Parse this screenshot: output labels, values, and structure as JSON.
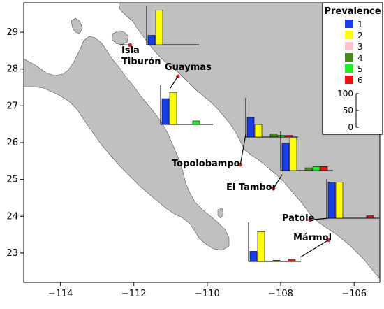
{
  "map": {
    "x_ticks": [
      "−114",
      "−112",
      "−110",
      "−108",
      "−106"
    ],
    "y_ticks": [
      "29",
      "28",
      "27",
      "26",
      "25",
      "24",
      "23"
    ],
    "lon_range": [
      -115,
      -105.3
    ],
    "lat_range": [
      22.2,
      29.8
    ]
  },
  "legend": {
    "title": "Prevalence",
    "categories": [
      {
        "label": "1",
        "color": "#1a3ee6"
      },
      {
        "label": "2",
        "color": "#ffff00"
      },
      {
        "label": "3",
        "color": "#ffc0cb"
      },
      {
        "label": "4",
        "color": "#4a8a1c"
      },
      {
        "label": "5",
        "color": "#22ee22"
      },
      {
        "label": "6",
        "color": "#ee1111"
      }
    ],
    "scale_labels": [
      "100",
      "50",
      "0"
    ]
  },
  "colors": {
    "land": "#c0c0c0",
    "sea": "#ffffff",
    "site_marker": "#e8242a"
  },
  "sites": [
    {
      "name_lines": [
        "Isla",
        "Tiburón"
      ],
      "lon": -112.1,
      "lat": 28.65,
      "prevalence": [
        24,
        88,
        0,
        0,
        0,
        0
      ]
    },
    {
      "name_lines": [
        "Guaymas"
      ],
      "lon": -110.8,
      "lat": 27.8,
      "prevalence": [
        66,
        82,
        0,
        0,
        9,
        0
      ]
    },
    {
      "name_lines": [
        "Topolobampo"
      ],
      "lon": -109.1,
      "lat": 25.4,
      "prevalence": [
        50,
        32,
        0,
        8,
        4,
        4
      ]
    },
    {
      "name_lines": [
        "El Tambor"
      ],
      "lon": -108.2,
      "lat": 24.75,
      "prevalence": [
        70,
        83,
        0,
        7,
        10,
        10
      ]
    },
    {
      "name_lines": [
        "Patole"
      ],
      "lon": -107.2,
      "lat": 23.9,
      "prevalence": [
        92,
        92,
        0,
        0,
        0,
        6
      ]
    },
    {
      "name_lines": [
        "Mármol"
      ],
      "lon": -106.7,
      "lat": 23.35,
      "prevalence": [
        26,
        76,
        0,
        3,
        0,
        6
      ]
    }
  ]
}
